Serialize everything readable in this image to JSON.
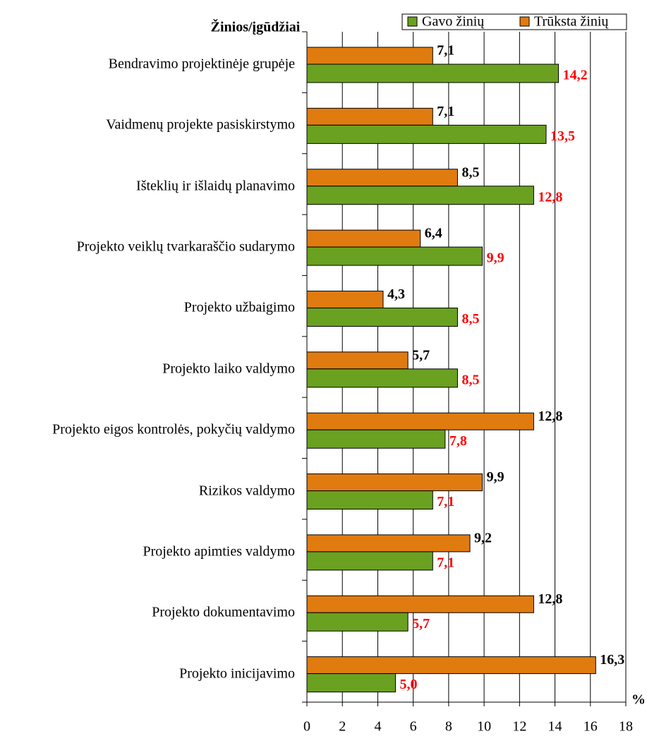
{
  "chart_data": {
    "type": "barh",
    "y_label": "Žinios/įgūdžiai",
    "x_label": "%",
    "categories": [
      "Bendravimo projektinėje grupėje",
      "Vaidmenų projekte pasiskirstymo",
      "Išteklių ir išlaidų planavimo",
      "Projekto veiklų tvarkaraščio sudarymo",
      "Projekto užbaigimo",
      "Projekto laiko valdymo",
      "Projekto eigos kontrolės, pokyčių valdymo",
      "Rizikos valdymo",
      "Projekto apimties valdymo",
      "Projekto dokumentavimo",
      "Projekto inicijavimo"
    ],
    "series": [
      {
        "name": "Trūksta žinių",
        "color": "#e07b10",
        "label_color": "#000000",
        "values": [
          7.1,
          7.1,
          8.5,
          6.4,
          4.3,
          5.7,
          12.8,
          9.9,
          9.2,
          12.8,
          16.3
        ],
        "value_labels": [
          "7,1",
          "7,1",
          "8,5",
          "6,4",
          "4,3",
          "5,7",
          "12,8",
          "9,9",
          "9,2",
          "12,8",
          "16,3"
        ]
      },
      {
        "name": "Gavo žinių",
        "color": "#6aa121",
        "label_color": "#ff0000",
        "values": [
          14.2,
          13.5,
          12.8,
          9.9,
          8.5,
          8.5,
          7.8,
          7.1,
          7.1,
          5.7,
          5.0
        ],
        "value_labels": [
          "14,2",
          "13,5",
          "12,8",
          "9,9",
          "8,5",
          "8,5",
          "7,8",
          "7,1",
          "7,1",
          "5,7",
          "5,0"
        ]
      }
    ],
    "legend_order": [
      1,
      0
    ],
    "xlim": [
      0,
      18
    ],
    "xticks": [
      0,
      2,
      4,
      6,
      8,
      10,
      12,
      14,
      16,
      18
    ],
    "grid": true
  }
}
